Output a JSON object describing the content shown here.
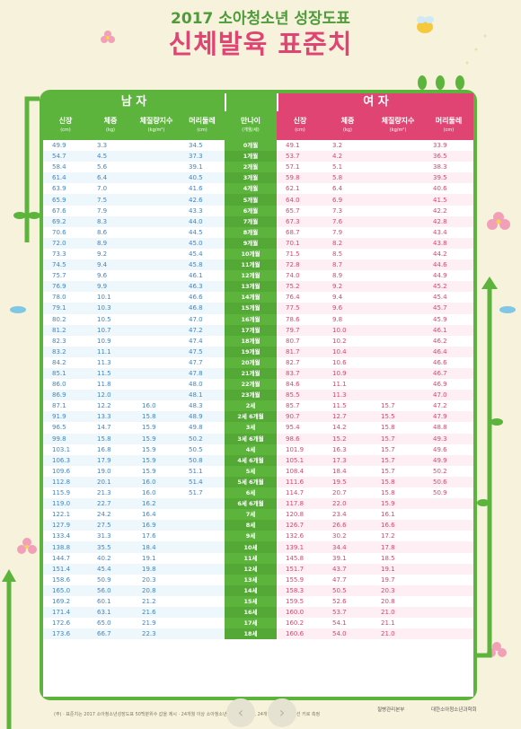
{
  "header": {
    "subtitle": "2017 소아청소년 성장도표",
    "title": "신체발육 표준치"
  },
  "sections": {
    "male": "남 자",
    "female": "여 자"
  },
  "columns": {
    "height": "신장",
    "height_unit": "(cm)",
    "weight": "체중",
    "weight_unit": "(kg)",
    "bmi": "체질량지수",
    "bmi_unit": "(kg/m²)",
    "head": "머리둘레",
    "head_unit": "(cm)",
    "age": "만나이",
    "age_unit": "(개월/세)"
  },
  "rows": [
    {
      "age": "0개월",
      "m": [
        "49.9",
        "3.3",
        "",
        "34.5"
      ],
      "f": [
        "49.1",
        "3.2",
        "",
        "33.9"
      ]
    },
    {
      "age": "1개월",
      "m": [
        "54.7",
        "4.5",
        "",
        "37.3"
      ],
      "f": [
        "53.7",
        "4.2",
        "",
        "36.5"
      ]
    },
    {
      "age": "2개월",
      "m": [
        "58.4",
        "5.6",
        "",
        "39.1"
      ],
      "f": [
        "57.1",
        "5.1",
        "",
        "38.3"
      ]
    },
    {
      "age": "3개월",
      "m": [
        "61.4",
        "6.4",
        "",
        "40.5"
      ],
      "f": [
        "59.8",
        "5.8",
        "",
        "39.5"
      ]
    },
    {
      "age": "4개월",
      "m": [
        "63.9",
        "7.0",
        "",
        "41.6"
      ],
      "f": [
        "62.1",
        "6.4",
        "",
        "40.6"
      ]
    },
    {
      "age": "5개월",
      "m": [
        "65.9",
        "7.5",
        "",
        "42.6"
      ],
      "f": [
        "64.0",
        "6.9",
        "",
        "41.5"
      ]
    },
    {
      "age": "6개월",
      "m": [
        "67.6",
        "7.9",
        "",
        "43.3"
      ],
      "f": [
        "65.7",
        "7.3",
        "",
        "42.2"
      ]
    },
    {
      "age": "7개월",
      "m": [
        "69.2",
        "8.3",
        "",
        "44.0"
      ],
      "f": [
        "67.3",
        "7.6",
        "",
        "42.8"
      ]
    },
    {
      "age": "8개월",
      "m": [
        "70.6",
        "8.6",
        "",
        "44.5"
      ],
      "f": [
        "68.7",
        "7.9",
        "",
        "43.4"
      ]
    },
    {
      "age": "9개월",
      "m": [
        "72.0",
        "8.9",
        "",
        "45.0"
      ],
      "f": [
        "70.1",
        "8.2",
        "",
        "43.8"
      ]
    },
    {
      "age": "10개월",
      "m": [
        "73.3",
        "9.2",
        "",
        "45.4"
      ],
      "f": [
        "71.5",
        "8.5",
        "",
        "44.2"
      ]
    },
    {
      "age": "11개월",
      "m": [
        "74.5",
        "9.4",
        "",
        "45.8"
      ],
      "f": [
        "72.8",
        "8.7",
        "",
        "44.6"
      ]
    },
    {
      "age": "12개월",
      "m": [
        "75.7",
        "9.6",
        "",
        "46.1"
      ],
      "f": [
        "74.0",
        "8.9",
        "",
        "44.9"
      ]
    },
    {
      "age": "13개월",
      "m": [
        "76.9",
        "9.9",
        "",
        "46.3"
      ],
      "f": [
        "75.2",
        "9.2",
        "",
        "45.2"
      ]
    },
    {
      "age": "14개월",
      "m": [
        "78.0",
        "10.1",
        "",
        "46.6"
      ],
      "f": [
        "76.4",
        "9.4",
        "",
        "45.4"
      ]
    },
    {
      "age": "15개월",
      "m": [
        "79.1",
        "10.3",
        "",
        "46.8"
      ],
      "f": [
        "77.5",
        "9.6",
        "",
        "45.7"
      ]
    },
    {
      "age": "16개월",
      "m": [
        "80.2",
        "10.5",
        "",
        "47.0"
      ],
      "f": [
        "78.6",
        "9.8",
        "",
        "45.9"
      ]
    },
    {
      "age": "17개월",
      "m": [
        "81.2",
        "10.7",
        "",
        "47.2"
      ],
      "f": [
        "79.7",
        "10.0",
        "",
        "46.1"
      ]
    },
    {
      "age": "18개월",
      "m": [
        "82.3",
        "10.9",
        "",
        "47.4"
      ],
      "f": [
        "80.7",
        "10.2",
        "",
        "46.2"
      ]
    },
    {
      "age": "19개월",
      "m": [
        "83.2",
        "11.1",
        "",
        "47.5"
      ],
      "f": [
        "81.7",
        "10.4",
        "",
        "46.4"
      ]
    },
    {
      "age": "20개월",
      "m": [
        "84.2",
        "11.3",
        "",
        "47.7"
      ],
      "f": [
        "82.7",
        "10.6",
        "",
        "46.6"
      ]
    },
    {
      "age": "21개월",
      "m": [
        "85.1",
        "11.5",
        "",
        "47.8"
      ],
      "f": [
        "83.7",
        "10.9",
        "",
        "46.7"
      ]
    },
    {
      "age": "22개월",
      "m": [
        "86.0",
        "11.8",
        "",
        "48.0"
      ],
      "f": [
        "84.6",
        "11.1",
        "",
        "46.9"
      ]
    },
    {
      "age": "23개월",
      "m": [
        "86.9",
        "12.0",
        "",
        "48.1"
      ],
      "f": [
        "85.5",
        "11.3",
        "",
        "47.0"
      ]
    },
    {
      "age": "2세",
      "m": [
        "87.1",
        "12.2",
        "16.0",
        "48.3"
      ],
      "f": [
        "85.7",
        "11.5",
        "15.7",
        "47.2"
      ]
    },
    {
      "age": "2세 6개월",
      "m": [
        "91.9",
        "13.3",
        "15.8",
        "48.9"
      ],
      "f": [
        "90.7",
        "12.7",
        "15.5",
        "47.9"
      ]
    },
    {
      "age": "3세",
      "m": [
        "96.5",
        "14.7",
        "15.9",
        "49.8"
      ],
      "f": [
        "95.4",
        "14.2",
        "15.8",
        "48.8"
      ]
    },
    {
      "age": "3세 6개월",
      "m": [
        "99.8",
        "15.8",
        "15.9",
        "50.2"
      ],
      "f": [
        "98.6",
        "15.2",
        "15.7",
        "49.3"
      ]
    },
    {
      "age": "4세",
      "m": [
        "103.1",
        "16.8",
        "15.9",
        "50.5"
      ],
      "f": [
        "101.9",
        "16.3",
        "15.7",
        "49.6"
      ]
    },
    {
      "age": "4세 6개월",
      "m": [
        "106.3",
        "17.9",
        "15.9",
        "50.8"
      ],
      "f": [
        "105.1",
        "17.3",
        "15.7",
        "49.9"
      ]
    },
    {
      "age": "5세",
      "m": [
        "109.6",
        "19.0",
        "15.9",
        "51.1"
      ],
      "f": [
        "108.4",
        "18.4",
        "15.7",
        "50.2"
      ]
    },
    {
      "age": "5세 6개월",
      "m": [
        "112.8",
        "20.1",
        "16.0",
        "51.4"
      ],
      "f": [
        "111.6",
        "19.5",
        "15.8",
        "50.6"
      ]
    },
    {
      "age": "6세",
      "m": [
        "115.9",
        "21.3",
        "16.0",
        "51.7"
      ],
      "f": [
        "114.7",
        "20.7",
        "15.8",
        "50.9"
      ]
    },
    {
      "age": "6세 6개월",
      "m": [
        "119.0",
        "22.7",
        "16.2",
        ""
      ],
      "f": [
        "117.8",
        "22.0",
        "15.9",
        ""
      ]
    },
    {
      "age": "7세",
      "m": [
        "122.1",
        "24.2",
        "16.4",
        ""
      ],
      "f": [
        "120.8",
        "23.4",
        "16.1",
        ""
      ]
    },
    {
      "age": "8세",
      "m": [
        "127.9",
        "27.5",
        "16.9",
        ""
      ],
      "f": [
        "126.7",
        "26.6",
        "16.6",
        ""
      ]
    },
    {
      "age": "9세",
      "m": [
        "133.4",
        "31.3",
        "17.6",
        ""
      ],
      "f": [
        "132.6",
        "30.2",
        "17.2",
        ""
      ]
    },
    {
      "age": "10세",
      "m": [
        "138.8",
        "35.5",
        "18.4",
        ""
      ],
      "f": [
        "139.1",
        "34.4",
        "17.8",
        ""
      ]
    },
    {
      "age": "11세",
      "m": [
        "144.7",
        "40.2",
        "19.1",
        ""
      ],
      "f": [
        "145.8",
        "39.1",
        "18.5",
        ""
      ]
    },
    {
      "age": "12세",
      "m": [
        "151.4",
        "45.4",
        "19.8",
        ""
      ],
      "f": [
        "151.7",
        "43.7",
        "19.1",
        ""
      ]
    },
    {
      "age": "13세",
      "m": [
        "158.6",
        "50.9",
        "20.3",
        ""
      ],
      "f": [
        "155.9",
        "47.7",
        "19.7",
        ""
      ]
    },
    {
      "age": "14세",
      "m": [
        "165.0",
        "56.0",
        "20.8",
        ""
      ],
      "f": [
        "158.3",
        "50.5",
        "20.3",
        ""
      ]
    },
    {
      "age": "15세",
      "m": [
        "169.2",
        "60.1",
        "21.2",
        ""
      ],
      "f": [
        "159.5",
        "52.6",
        "20.8",
        ""
      ]
    },
    {
      "age": "16세",
      "m": [
        "171.4",
        "63.1",
        "21.6",
        ""
      ],
      "f": [
        "160.0",
        "53.7",
        "21.0",
        ""
      ]
    },
    {
      "age": "17세",
      "m": [
        "172.6",
        "65.0",
        "21.9",
        ""
      ],
      "f": [
        "160.2",
        "54.1",
        "21.1",
        ""
      ]
    },
    {
      "age": "18세",
      "m": [
        "173.6",
        "66.7",
        "22.3",
        ""
      ],
      "f": [
        "160.6",
        "54.0",
        "21.0",
        ""
      ]
    }
  ],
  "footer": {
    "note": "(주) · 표준치는 2017 소아청소년성장도표 50백분위수 값을 제시 · 24개월 이상 소아청소년 신장은 누운키, 24개월 이후 신장은 선 키로 측정",
    "logo1": "질병관리본부",
    "logo2": "대한소아청소년과학회"
  },
  "nav": {
    "prev": "‹",
    "next": "›"
  },
  "colors": {
    "green": "#5cb43c",
    "pink": "#e04473",
    "blue": "#3f86c6",
    "bg": "#f7f2dc"
  }
}
